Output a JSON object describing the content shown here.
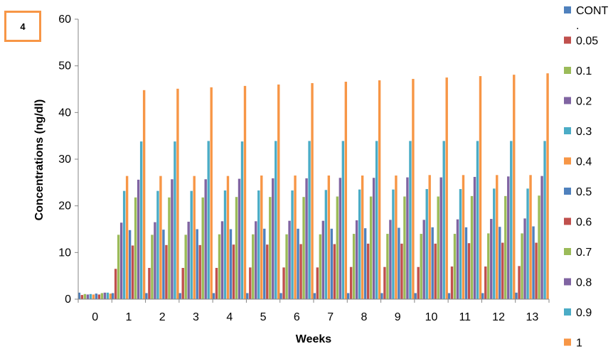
{
  "panel_label": "4",
  "chart_data": {
    "type": "bar",
    "xlabel": "Weeks",
    "ylabel": "Concentrations (ng/dl)",
    "ylim": [
      0,
      60
    ],
    "yticks": [
      0,
      10,
      20,
      30,
      40,
      50,
      60
    ],
    "grid": false,
    "legend_position": "right",
    "categories": [
      "0",
      "1",
      "2",
      "3",
      "4",
      "5",
      "6",
      "7",
      "8",
      "9",
      "10",
      "11",
      "12",
      "13"
    ],
    "series": [
      {
        "name": "CONT",
        "legend_label": "CONT",
        "legend_extra": ".",
        "color": "#4F81BD",
        "values": [
          1.4,
          1.3,
          1.3,
          1.3,
          1.3,
          1.3,
          1.3,
          1.3,
          1.3,
          1.3,
          1.3,
          1.3,
          1.3,
          1.4
        ]
      },
      {
        "name": "0.05",
        "legend_label": "0.05",
        "color": "#C0504D",
        "values": [
          0.9,
          6.5,
          6.7,
          6.7,
          6.7,
          6.8,
          6.8,
          6.8,
          6.9,
          6.9,
          6.9,
          7.0,
          7.0,
          7.1
        ]
      },
      {
        "name": "0.1",
        "legend_label": "0.1",
        "color": "#9BBB59",
        "values": [
          1.1,
          13.8,
          13.8,
          13.8,
          13.9,
          13.9,
          13.9,
          13.9,
          14.0,
          14.0,
          14.0,
          14.0,
          14.1,
          14.1
        ]
      },
      {
        "name": "0.2",
        "legend_label": "0.2",
        "color": "#8064A2",
        "values": [
          1.0,
          16.4,
          16.5,
          16.6,
          16.7,
          16.7,
          16.8,
          16.8,
          16.9,
          17.0,
          17.0,
          17.1,
          17.2,
          17.3
        ]
      },
      {
        "name": "0.3",
        "legend_label": "0.3",
        "color": "#4BACC6",
        "values": [
          1.1,
          23.2,
          23.2,
          23.2,
          23.3,
          23.3,
          23.3,
          23.4,
          23.5,
          23.5,
          23.6,
          23.6,
          23.7,
          23.7
        ]
      },
      {
        "name": "0.4",
        "legend_label": "0.4",
        "color": "#F79646",
        "values": [
          1.0,
          26.4,
          26.4,
          26.4,
          26.4,
          26.5,
          26.5,
          26.5,
          26.5,
          26.5,
          26.6,
          26.6,
          26.6,
          26.6
        ]
      },
      {
        "name": "0.5",
        "legend_label": "0.5",
        "color": "#4F81BD",
        "values": [
          1.2,
          14.8,
          14.9,
          15.0,
          15.0,
          15.1,
          15.1,
          15.1,
          15.2,
          15.3,
          15.4,
          15.4,
          15.5,
          15.6
        ]
      },
      {
        "name": "0.6",
        "legend_label": "0.6",
        "color": "#C0504D",
        "values": [
          1.0,
          11.5,
          11.6,
          11.6,
          11.7,
          11.7,
          11.8,
          11.8,
          11.9,
          11.9,
          11.9,
          12.0,
          12.1,
          12.1
        ]
      },
      {
        "name": "0.7",
        "legend_label": "0.7",
        "color": "#9BBB59",
        "values": [
          1.3,
          21.8,
          21.8,
          21.8,
          21.9,
          21.9,
          21.9,
          22.0,
          22.0,
          22.0,
          22.0,
          22.1,
          22.1,
          22.2
        ]
      },
      {
        "name": "0.8",
        "legend_label": "0.8",
        "color": "#8064A2",
        "values": [
          1.4,
          25.6,
          25.7,
          25.7,
          25.8,
          25.9,
          25.9,
          26.0,
          26.0,
          26.1,
          26.1,
          26.2,
          26.3,
          26.4
        ]
      },
      {
        "name": "0.9",
        "legend_label": "0.9",
        "color": "#4BACC6",
        "values": [
          1.4,
          33.8,
          33.8,
          33.9,
          33.8,
          33.9,
          33.9,
          33.9,
          33.9,
          33.9,
          33.9,
          33.9,
          33.9,
          33.9
        ]
      },
      {
        "name": "1",
        "legend_label": "1",
        "color": "#F79646",
        "values": [
          1.2,
          44.8,
          45.1,
          45.4,
          45.7,
          46.0,
          46.3,
          46.6,
          46.9,
          47.2,
          47.5,
          47.8,
          48.1,
          48.4
        ]
      }
    ]
  }
}
